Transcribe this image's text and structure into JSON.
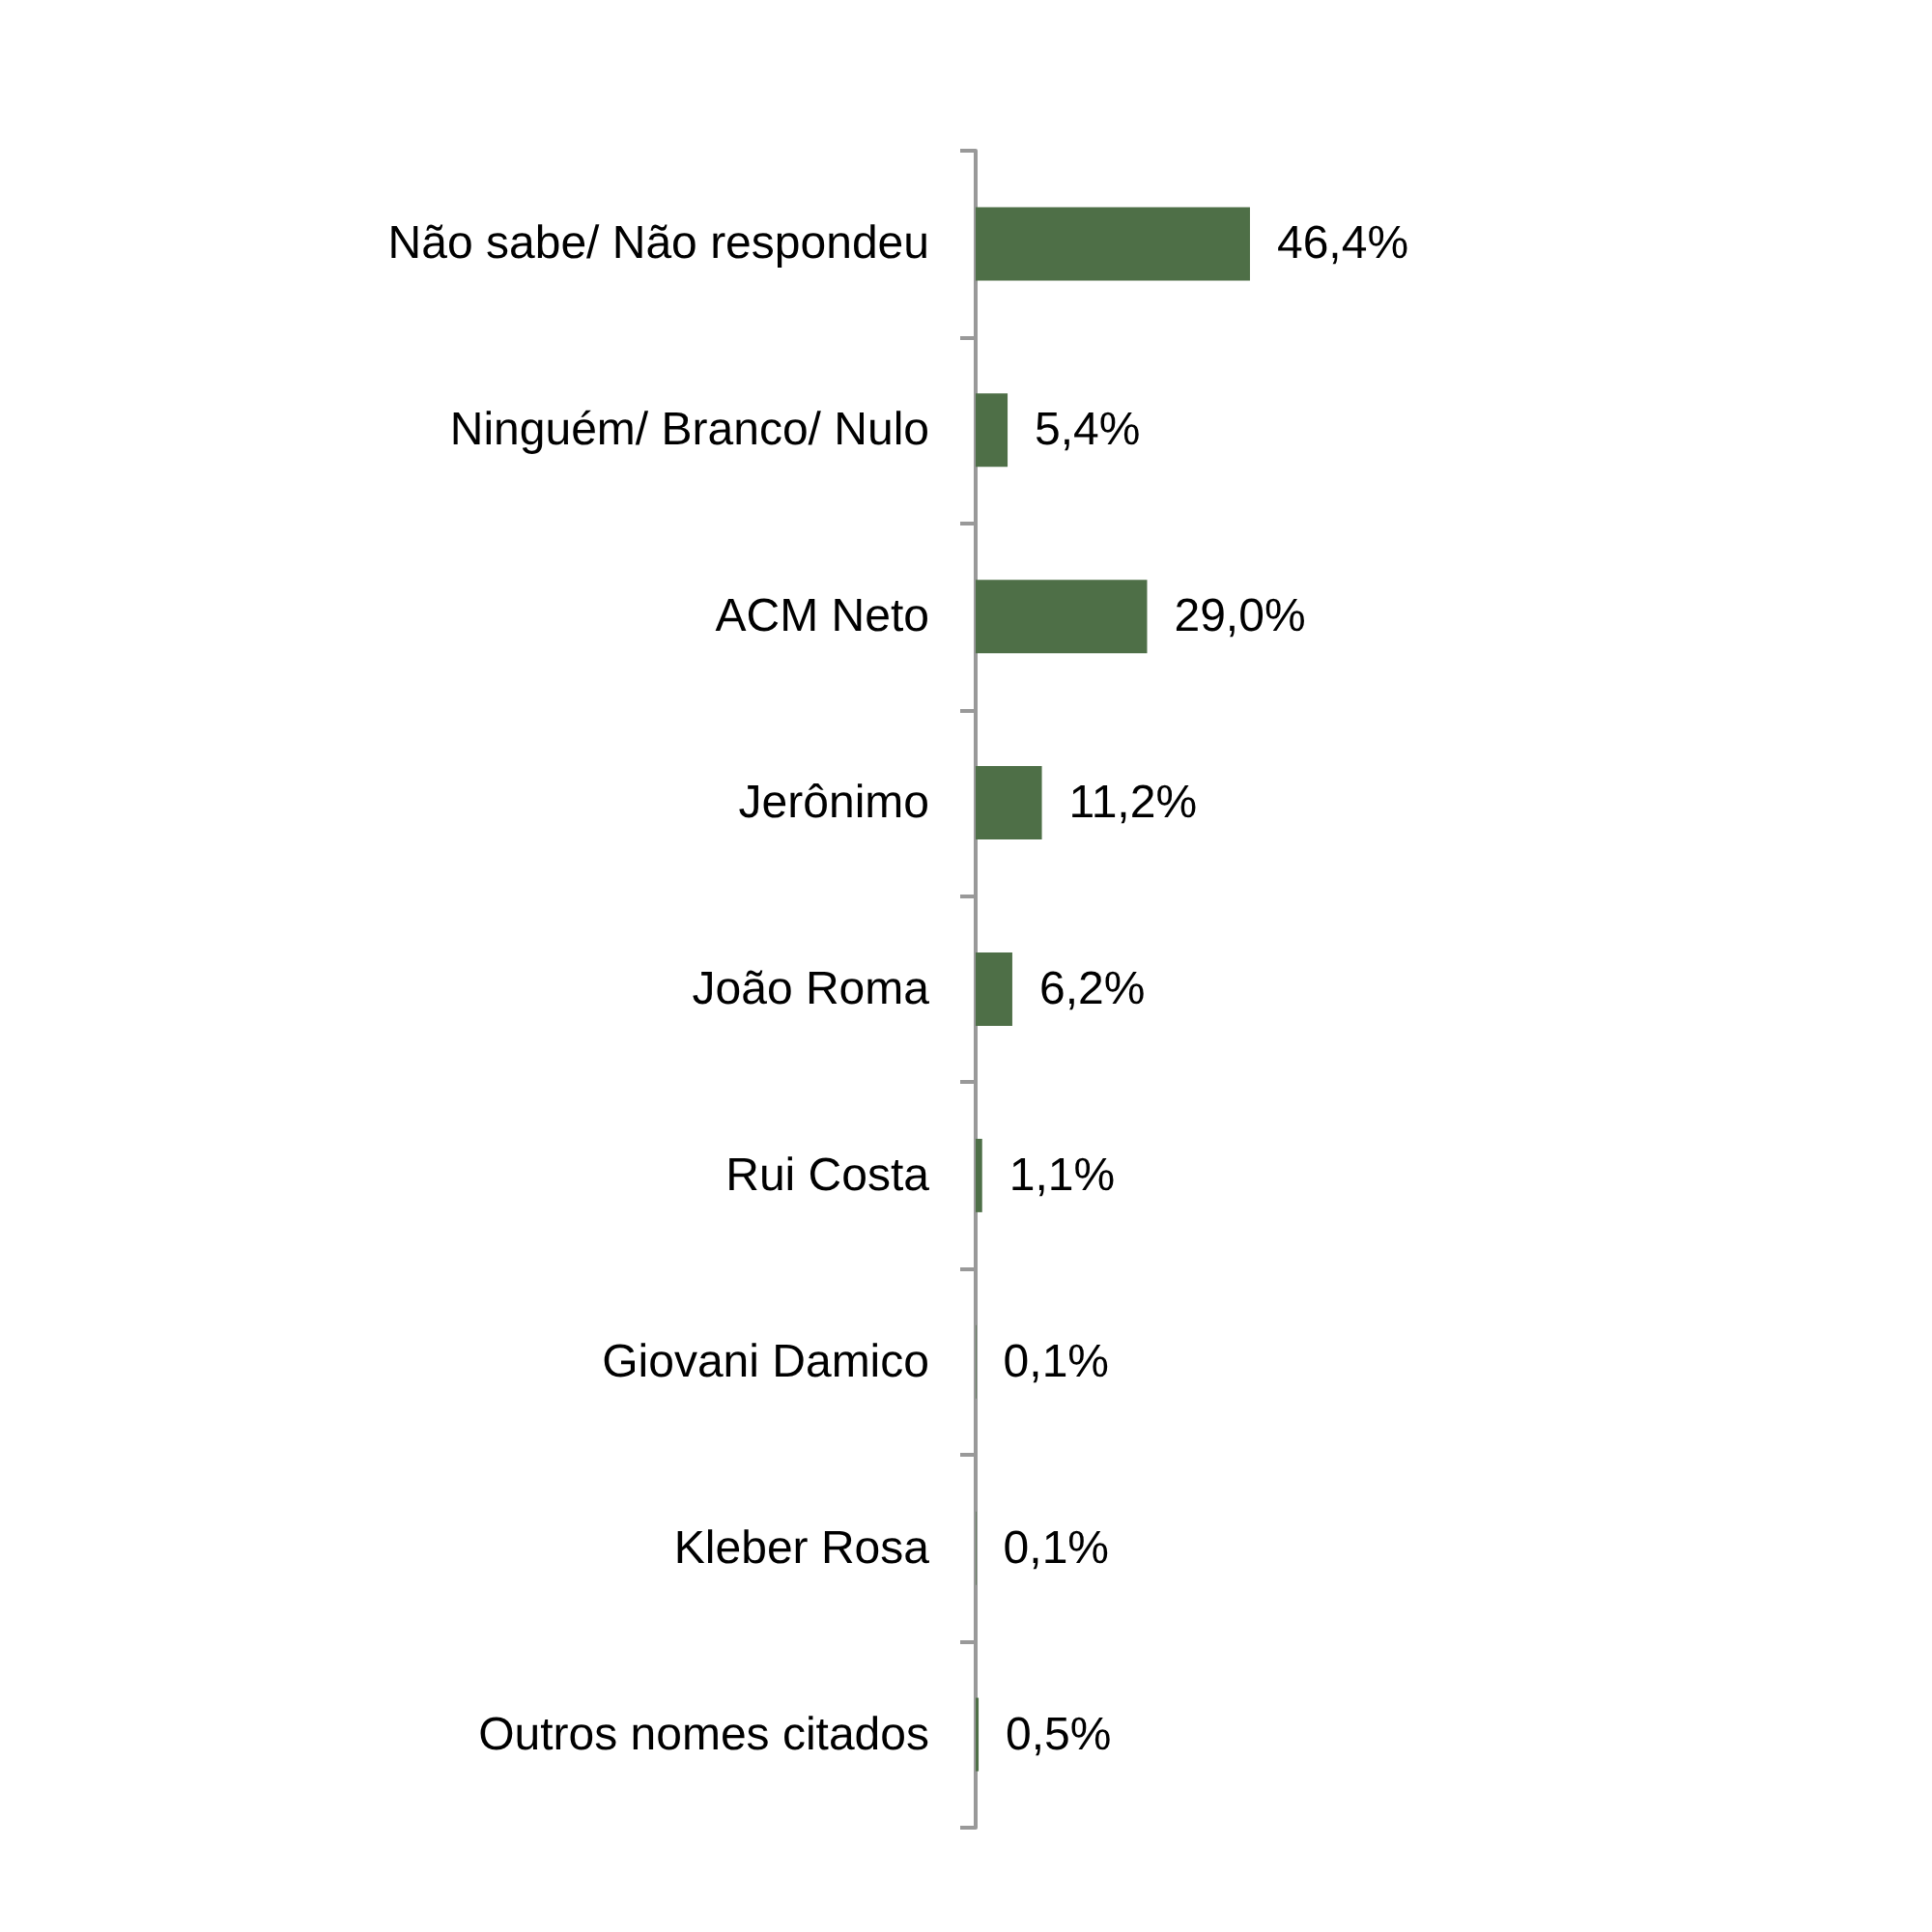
{
  "chart_data": {
    "type": "bar",
    "orientation": "horizontal",
    "categories": [
      "Não sabe/ Não respondeu",
      "Ninguém/ Branco/ Nulo",
      "ACM Neto",
      "Jerônimo",
      "João Roma",
      "Rui Costa",
      "Giovani Damico",
      "Kleber Rosa",
      "Outros nomes citados"
    ],
    "values": [
      46.4,
      5.4,
      29.0,
      11.2,
      6.2,
      1.1,
      0.1,
      0.1,
      0.5
    ],
    "value_labels": [
      "46,4%",
      "5,4%",
      "29,0%",
      "11,2%",
      "6,2%",
      "1,1%",
      "0,1%",
      "0,1%",
      "0,5%"
    ],
    "color": "#4e6f47",
    "grid": false
  }
}
